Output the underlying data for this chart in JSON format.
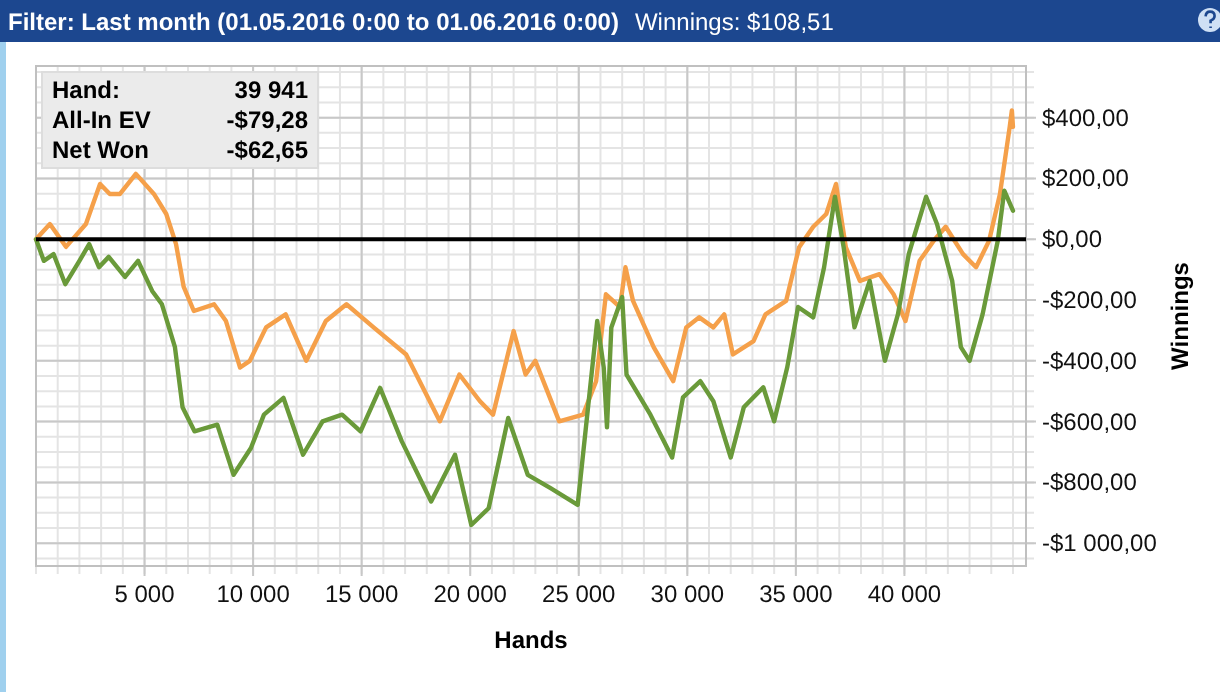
{
  "chart_data": {
    "type": "line",
    "title": "Filter: Last month (01.05.2016 0:00 to 01.06.2016 0:00)",
    "subtitle": "Winnings: $108,51",
    "xlabel": "Hands",
    "ylabel": "Winnings",
    "annotations": [
      "Hand:",
      "39 941",
      "All-In EV",
      "-$79,28",
      "Net Won",
      "-$62,65"
    ],
    "xlim": [
      0,
      45600
    ],
    "ylim": [
      -1075,
      570
    ],
    "xticks": [
      {
        "value": 5000,
        "label": "5 000"
      },
      {
        "value": 10000,
        "label": "10 000"
      },
      {
        "value": 15000,
        "label": "15 000"
      },
      {
        "value": 20000,
        "label": "20 000"
      },
      {
        "value": 25000,
        "label": "25 000"
      },
      {
        "value": 30000,
        "label": "30 000"
      },
      {
        "value": 35000,
        "label": "35 000"
      },
      {
        "value": 40000,
        "label": "40 000"
      }
    ],
    "yticks": [
      {
        "value": 400,
        "label": "$400,00"
      },
      {
        "value": 200,
        "label": "$200,00"
      },
      {
        "value": 0,
        "label": "$0,00"
      },
      {
        "value": -200,
        "label": "-$200,00"
      },
      {
        "value": -400,
        "label": "-$400,00"
      },
      {
        "value": -600,
        "label": "-$600,00"
      },
      {
        "value": -800,
        "label": "-$800,00"
      },
      {
        "value": -1000,
        "label": "-$1 000,00"
      }
    ],
    "grid": true,
    "marker": "none",
    "line_style": "solid",
    "ref_lines": [
      {
        "axis": "y",
        "value": 0,
        "color": "#000000"
      }
    ],
    "series": [
      {
        "color": "#f5a04a",
        "x": [
          0,
          640,
          1380,
          2300,
          2950,
          3400,
          3870,
          4600,
          5430,
          6000,
          6450,
          6800,
          7270,
          8200,
          8750,
          9400,
          9850,
          10600,
          11500,
          12450,
          13350,
          14300,
          15550,
          17050,
          18600,
          19500,
          20450,
          21050,
          22000,
          22550,
          23000,
          24100,
          25200,
          25800,
          26250,
          26900,
          27150,
          27500,
          28450,
          29350,
          29950,
          30550,
          31200,
          31700,
          32100,
          33050,
          33600,
          34550,
          35150,
          35800,
          36400,
          36850,
          37300,
          37950,
          38850,
          39500,
          40050,
          40700,
          41350,
          41900,
          42700,
          43300,
          43900,
          44400,
          44850,
          44950,
          45000
        ],
        "values": [
          0,
          50,
          -25,
          50,
          182,
          149,
          149,
          215,
          149,
          83,
          -16,
          -156,
          -236,
          -214,
          -269,
          -422,
          -400,
          -290,
          -247,
          -400,
          -269,
          -214,
          -290,
          -379,
          -599,
          -445,
          -533,
          -577,
          -302,
          -445,
          -400,
          -599,
          -577,
          -467,
          -181,
          -223,
          -92,
          -203,
          -355,
          -467,
          -290,
          -257,
          -290,
          -247,
          -379,
          -335,
          -247,
          -203,
          -26,
          41,
          83,
          182,
          -26,
          -137,
          -115,
          -181,
          -269,
          -71,
          -5,
          41,
          -49,
          -92,
          -5,
          149,
          370,
          424,
          370
        ]
      },
      {
        "color": "#6a9a3a",
        "x": [
          0,
          360,
          810,
          1350,
          2000,
          2450,
          2900,
          3350,
          4100,
          4700,
          5350,
          5800,
          6400,
          6750,
          7300,
          8350,
          9100,
          9900,
          10500,
          11400,
          12300,
          13200,
          14100,
          14950,
          15850,
          16850,
          18200,
          19300,
          20050,
          20850,
          21750,
          22650,
          23700,
          24950,
          25850,
          26150,
          26300,
          26500,
          27000,
          27200,
          28300,
          29300,
          29800,
          30600,
          31200,
          32000,
          32600,
          33500,
          34000,
          34600,
          35100,
          35800,
          36300,
          36800,
          37200,
          37700,
          38400,
          39100,
          39700,
          40200,
          41000,
          41500,
          42200,
          42600,
          43000,
          43600,
          44300,
          44600,
          45000
        ],
        "values": [
          0,
          -71,
          -49,
          -148,
          -71,
          -16,
          -92,
          -58,
          -124,
          -71,
          -170,
          -214,
          -355,
          -553,
          -632,
          -610,
          -775,
          -687,
          -577,
          -522,
          -709,
          -599,
          -577,
          -632,
          -489,
          -665,
          -863,
          -709,
          -940,
          -885,
          -588,
          -775,
          -819,
          -874,
          -269,
          -422,
          -619,
          -290,
          -190,
          -445,
          -577,
          -718,
          -520,
          -467,
          -533,
          -718,
          -553,
          -487,
          -599,
          -422,
          -223,
          -257,
          -92,
          140,
          -26,
          -290,
          -137,
          -400,
          -247,
          -49,
          140,
          50,
          -137,
          -355,
          -400,
          -247,
          -5,
          160,
          94
        ]
      }
    ]
  }
}
